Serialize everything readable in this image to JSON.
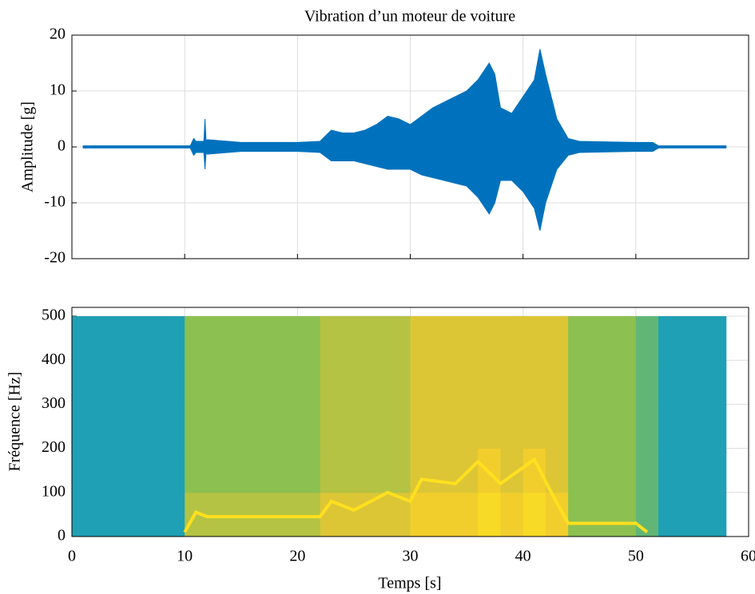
{
  "chart_data": [
    {
      "type": "band",
      "title": "Vibration d’un moteur de voiture",
      "y_label": "Amplitude [g]",
      "color": "#0072bd",
      "x": [
        1,
        10.5,
        10.8,
        11,
        11.7,
        11.8,
        11.9,
        12,
        15,
        20,
        22,
        23,
        24,
        25,
        26,
        27,
        28,
        29,
        30,
        31,
        32,
        33,
        34,
        35,
        36,
        37,
        37.5,
        38,
        39,
        40,
        41,
        41.5,
        42,
        43,
        44,
        45,
        50,
        51.5,
        52,
        58
      ],
      "upper": [
        0.2,
        0.2,
        1.5,
        1,
        1,
        5,
        1,
        1.3,
        0.8,
        0.8,
        1,
        3,
        2.5,
        2.5,
        3,
        4,
        5.5,
        5,
        4,
        5.5,
        7,
        8,
        9,
        10,
        12,
        15,
        13,
        7,
        6,
        9,
        12,
        17.5,
        13,
        5,
        1.5,
        1,
        0.8,
        0.8,
        0.2,
        0.2
      ],
      "lower": [
        -0.2,
        -0.2,
        -1.5,
        -1,
        -1,
        -4,
        -1,
        -1.3,
        -0.8,
        -0.8,
        -1,
        -2.5,
        -2.5,
        -2.5,
        -3,
        -3.5,
        -4,
        -4,
        -4,
        -5,
        -5.5,
        -6,
        -6.5,
        -7,
        -9,
        -12,
        -10,
        -6,
        -6,
        -8,
        -11,
        -15,
        -10,
        -4,
        -1.5,
        -1,
        -0.8,
        -0.8,
        -0.2,
        -0.2
      ],
      "xlim": [
        0,
        60
      ],
      "xticks": [
        0,
        10,
        20,
        30,
        40,
        50,
        60
      ],
      "xtick_labels": false,
      "ylim": [
        -20,
        20
      ],
      "yticks": [
        -20,
        -10,
        0,
        10,
        20
      ],
      "grid": true
    },
    {
      "type": "heatmap",
      "x_label": "Temps [s]",
      "y_label": "Fréquence [Hz]",
      "x_edges": [
        0,
        2,
        4,
        6,
        8,
        10,
        12,
        14,
        16,
        18,
        20,
        22,
        24,
        26,
        28,
        30,
        32,
        34,
        36,
        38,
        40,
        42,
        44,
        46,
        48,
        50,
        52,
        54,
        56,
        58
      ],
      "y_edges": [
        0,
        100,
        200,
        300,
        400,
        500
      ],
      "z": [
        [
          2,
          2,
          2,
          2,
          2,
          6,
          6,
          6,
          6,
          6,
          6,
          7,
          7,
          7,
          7,
          8,
          8,
          8,
          9,
          8,
          9,
          8,
          5,
          5,
          5,
          4,
          2,
          2,
          2
        ],
        [
          2,
          2,
          2,
          2,
          2,
          5,
          5,
          5,
          5,
          5,
          5,
          6,
          6,
          6,
          6,
          7,
          7,
          7,
          8,
          7,
          8,
          7,
          5,
          5,
          5,
          4,
          2,
          2,
          2
        ],
        [
          2,
          2,
          2,
          2,
          2,
          5,
          5,
          5,
          5,
          5,
          5,
          6,
          6,
          6,
          6,
          7,
          7,
          7,
          7,
          7,
          7,
          7,
          5,
          5,
          5,
          4,
          2,
          2,
          2
        ],
        [
          2,
          2,
          2,
          2,
          2,
          5,
          5,
          5,
          5,
          5,
          5,
          6,
          6,
          6,
          6,
          7,
          7,
          7,
          7,
          7,
          7,
          7,
          5,
          5,
          5,
          4,
          2,
          2,
          2
        ],
        [
          2,
          2,
          2,
          2,
          2,
          5,
          5,
          5,
          5,
          5,
          5,
          6,
          6,
          6,
          6,
          7,
          7,
          7,
          7,
          7,
          7,
          7,
          5,
          5,
          5,
          4,
          2,
          2,
          2
        ]
      ],
      "zlim": [
        0,
        10
      ],
      "colors": [
        "#1a7fc8",
        "#20a8b0",
        "#8cc050",
        "#f0c830",
        "#fae61e"
      ],
      "ridge_x": [
        10,
        11,
        12,
        15,
        20,
        22,
        23,
        25,
        28,
        30,
        31,
        34,
        36,
        38,
        41,
        42.5,
        44,
        50,
        51
      ],
      "ridge_y": [
        10,
        55,
        45,
        45,
        45,
        45,
        80,
        60,
        100,
        80,
        130,
        120,
        170,
        120,
        175,
        100,
        30,
        30,
        10
      ],
      "ridge_color": "#ffe01e",
      "xlim": [
        0,
        60
      ],
      "xticks": [
        0,
        10,
        20,
        30,
        40,
        50,
        60
      ],
      "ylim": [
        0,
        520
      ],
      "yticks": [
        0,
        100,
        200,
        300,
        400,
        500
      ],
      "grid": true
    }
  ]
}
